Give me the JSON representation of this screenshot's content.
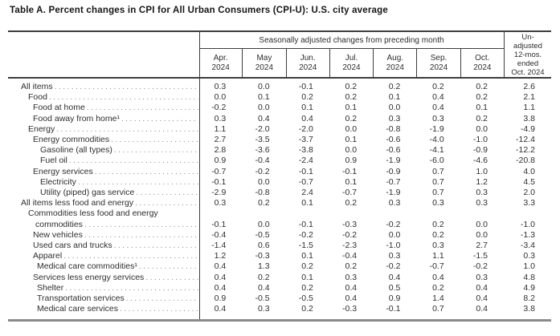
{
  "title": "Table A. Percent changes in CPI for All Urban Consumers (CPI-U): U.S. city average",
  "table": {
    "group_header": "Seasonally adjusted changes from preceding month",
    "unadjusted_header": "Un-\nadjusted\n12-mos.\nended\nOct. 2024",
    "month_columns": [
      "Apr.\n2024",
      "May\n2024",
      "Jun.\n2024",
      "Jul.\n2024",
      "Aug.\n2024",
      "Sep.\n2024",
      "Oct.\n2024"
    ],
    "rows": [
      {
        "label": "All items",
        "indent": 0,
        "values": [
          "0.3",
          "0.0",
          "-0.1",
          "0.2",
          "0.2",
          "0.2",
          "0.2"
        ],
        "unadjusted": "2.6"
      },
      {
        "label": "Food",
        "indent": 1,
        "values": [
          "0.0",
          "0.1",
          "0.2",
          "0.2",
          "0.1",
          "0.4",
          "0.2"
        ],
        "unadjusted": "2.1"
      },
      {
        "label": "Food at home",
        "indent": 2,
        "values": [
          "-0.2",
          "0.0",
          "0.1",
          "0.1",
          "0.0",
          "0.4",
          "0.1"
        ],
        "unadjusted": "1.1"
      },
      {
        "label": "Food away from home¹",
        "indent": 2,
        "values": [
          "0.3",
          "0.4",
          "0.4",
          "0.2",
          "0.3",
          "0.3",
          "0.2"
        ],
        "unadjusted": "3.8"
      },
      {
        "label": "Energy",
        "indent": 1,
        "values": [
          "1.1",
          "-2.0",
          "-2.0",
          "0.0",
          "-0.8",
          "-1.9",
          "0.0"
        ],
        "unadjusted": "-4.9"
      },
      {
        "label": "Energy commodities",
        "indent": 2,
        "values": [
          "2.7",
          "-3.5",
          "-3.7",
          "0.1",
          "-0.6",
          "-4.0",
          "-1.0"
        ],
        "unadjusted": "-12.4"
      },
      {
        "label": "Gasoline (all types)",
        "indent": 4,
        "values": [
          "2.8",
          "-3.6",
          "-3.8",
          "0.0",
          "-0.6",
          "-4.1",
          "-0.9"
        ],
        "unadjusted": "-12.2"
      },
      {
        "label": "Fuel oil",
        "indent": 4,
        "values": [
          "0.9",
          "-0.4",
          "-2.4",
          "0.9",
          "-1.9",
          "-6.0",
          "-4.6"
        ],
        "unadjusted": "-20.8"
      },
      {
        "label": "Energy services",
        "indent": 2,
        "values": [
          "-0.7",
          "-0.2",
          "-0.1",
          "-0.1",
          "-0.9",
          "0.7",
          "1.0"
        ],
        "unadjusted": "4.0"
      },
      {
        "label": "Electricity",
        "indent": 4,
        "values": [
          "-0.1",
          "0.0",
          "-0.7",
          "0.1",
          "-0.7",
          "0.7",
          "1.2"
        ],
        "unadjusted": "4.5"
      },
      {
        "label": "Utility (piped) gas service",
        "indent": 4,
        "values": [
          "-2.9",
          "-0.8",
          "2.4",
          "-0.7",
          "-1.9",
          "0.7",
          "0.3"
        ],
        "unadjusted": "2.0"
      },
      {
        "label": "All items less food and energy",
        "indent": 0,
        "values": [
          "0.3",
          "0.2",
          "0.1",
          "0.2",
          "0.3",
          "0.3",
          "0.3"
        ],
        "unadjusted": "3.3"
      },
      {
        "label": "Commodities less food and energy",
        "label2": "commodities",
        "indent": 1,
        "values": [
          "-0.1",
          "0.0",
          "-0.1",
          "-0.3",
          "-0.2",
          "0.2",
          "0.0"
        ],
        "unadjusted": "-1.0"
      },
      {
        "label": "New vehicles",
        "indent": 2,
        "values": [
          "-0.4",
          "-0.5",
          "-0.2",
          "-0.2",
          "0.0",
          "0.2",
          "0.0"
        ],
        "unadjusted": "-1.3"
      },
      {
        "label": "Used cars and trucks",
        "indent": 2,
        "values": [
          "-1.4",
          "0.6",
          "-1.5",
          "-2.3",
          "-1.0",
          "0.3",
          "2.7"
        ],
        "unadjusted": "-3.4"
      },
      {
        "label": "Apparel",
        "indent": 2,
        "values": [
          "1.2",
          "-0.3",
          "0.1",
          "-0.4",
          "0.3",
          "1.1",
          "-1.5"
        ],
        "unadjusted": "0.3"
      },
      {
        "label": "Medical care commodities¹",
        "indent": 3,
        "values": [
          "0.4",
          "1.3",
          "0.2",
          "0.2",
          "-0.2",
          "-0.7",
          "-0.2"
        ],
        "unadjusted": "1.0"
      },
      {
        "label": "Services less energy services",
        "indent": 2,
        "values": [
          "0.4",
          "0.2",
          "0.1",
          "0.3",
          "0.4",
          "0.4",
          "0.3"
        ],
        "unadjusted": "4.8"
      },
      {
        "label": "Shelter",
        "indent": 3,
        "values": [
          "0.4",
          "0.4",
          "0.2",
          "0.4",
          "0.5",
          "0.2",
          "0.4"
        ],
        "unadjusted": "4.9"
      },
      {
        "label": "Transportation services",
        "indent": 3,
        "values": [
          "0.9",
          "-0.5",
          "-0.5",
          "0.4",
          "0.9",
          "1.4",
          "0.4"
        ],
        "unadjusted": "8.2"
      },
      {
        "label": "Medical care services",
        "indent": 3,
        "values": [
          "0.4",
          "0.3",
          "0.2",
          "-0.3",
          "-0.1",
          "0.7",
          "0.4"
        ],
        "unadjusted": "3.8"
      }
    ]
  }
}
